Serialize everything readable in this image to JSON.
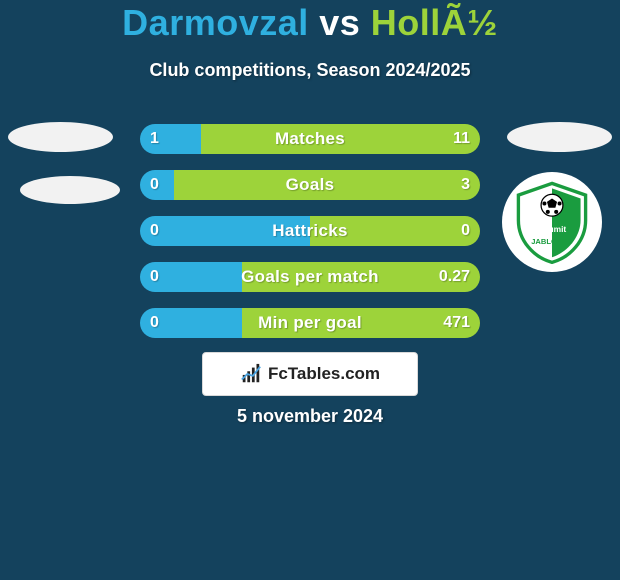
{
  "background_color": "#14425d",
  "title": {
    "player1": "Darmovzal",
    "vs": " vs ",
    "player2": "HollÃ½",
    "color1": "#2fb0e0",
    "color2": "#9dd33a",
    "vs_color": "#ffffff",
    "fontsize": 36
  },
  "subtitle": "Club competitions, Season 2024/2025",
  "subtitle_color": "#ffffff",
  "subtitle_fontsize": 18,
  "bars": {
    "left_color": "#2fb0e0",
    "right_color": "#9dd33a",
    "label_color": "#ffffff",
    "value_color": "#ffffff",
    "rows": [
      {
        "label": "Matches",
        "left": "1",
        "right": "11",
        "left_pct": 18,
        "right_pct": 82
      },
      {
        "label": "Goals",
        "left": "0",
        "right": "3",
        "left_pct": 10,
        "right_pct": 90
      },
      {
        "label": "Hattricks",
        "left": "0",
        "right": "0",
        "left_pct": 50,
        "right_pct": 50
      },
      {
        "label": "Goals per match",
        "left": "0",
        "right": "0.27",
        "left_pct": 30,
        "right_pct": 70
      },
      {
        "label": "Min per goal",
        "left": "0",
        "right": "471",
        "left_pct": 30,
        "right_pct": 70
      }
    ]
  },
  "watermark": "FcTables.com",
  "date": "5 november 2024",
  "club_logo": {
    "name": "FK Jablonec",
    "primary": "#1a9c3f",
    "secondary": "#ffffff",
    "ball": "#000000"
  }
}
